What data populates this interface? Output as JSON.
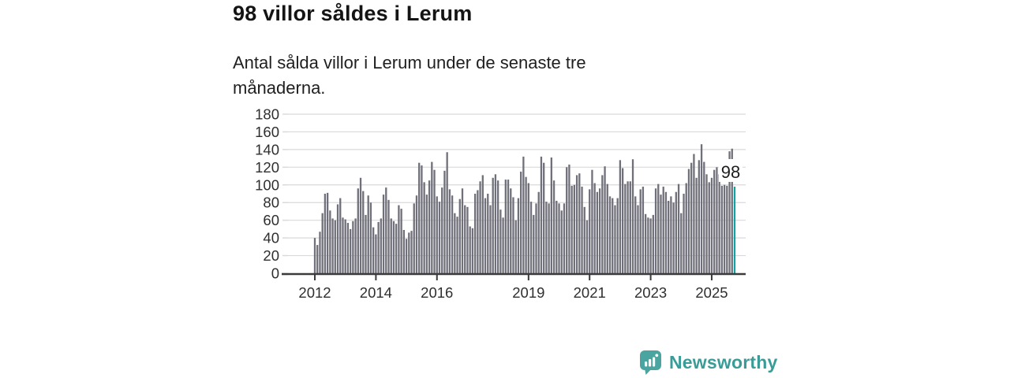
{
  "header": {
    "title": "98 villor såldes i Lerum",
    "subtitle_lines": [
      "Antal sålda villor i Lerum under de senaste tre",
      "månaderna."
    ]
  },
  "chart_data": {
    "type": "bar",
    "title": "98 villor såldes i Lerum",
    "subtitle": "Antal sålda villor i Lerum under de senaste tre månaderna.",
    "xlabel": "",
    "ylabel": "",
    "frequency": "monthly",
    "x_start": "2012-01",
    "x_end": "2025-10",
    "ylim": [
      0,
      180
    ],
    "y_ticks": [
      0,
      20,
      40,
      60,
      80,
      100,
      120,
      140,
      160,
      180
    ],
    "x_tick_years": [
      2012,
      2014,
      2016,
      2019,
      2021,
      2023,
      2025
    ],
    "x_tick_labels": [
      "2012",
      "2014",
      "2016",
      "2019",
      "2021",
      "2023",
      "2025"
    ],
    "grid": true,
    "bar_color": "#70707a",
    "values": [
      40,
      32,
      47,
      68,
      90,
      91,
      71,
      62,
      60,
      78,
      85,
      63,
      61,
      57,
      50,
      59,
      62,
      96,
      108,
      93,
      66,
      88,
      80,
      52,
      44,
      58,
      62,
      89,
      97,
      83,
      62,
      59,
      56,
      77,
      73,
      49,
      39,
      46,
      48,
      79,
      88,
      125,
      122,
      103,
      89,
      105,
      126,
      117,
      87,
      81,
      97,
      116,
      137,
      95,
      88,
      68,
      64,
      84,
      96,
      77,
      75,
      53,
      51,
      90,
      94,
      104,
      111,
      85,
      90,
      77,
      108,
      112,
      105,
      72,
      63,
      106,
      106,
      96,
      86,
      60,
      85,
      115,
      132,
      109,
      102,
      81,
      66,
      79,
      92,
      132,
      125,
      81,
      79,
      131,
      105,
      82,
      79,
      71,
      79,
      120,
      123,
      99,
      100,
      111,
      113,
      98,
      75,
      60,
      95,
      117,
      102,
      92,
      96,
      111,
      121,
      101,
      87,
      85,
      77,
      85,
      128,
      119,
      101,
      104,
      104,
      129,
      87,
      77,
      95,
      98,
      67,
      63,
      62,
      66,
      96,
      101,
      89,
      98,
      92,
      82,
      87,
      80,
      92,
      101,
      68,
      90,
      102,
      118,
      125,
      135,
      108,
      128,
      146,
      126,
      112,
      103,
      108,
      117,
      120,
      112,
      99,
      100,
      99,
      138,
      141,
      98
    ],
    "highlight": {
      "index": 165,
      "value": 98,
      "label": "98",
      "color": "#12a2a2"
    },
    "colors": {
      "grid": "#dadada",
      "axis": "#3b3b3b",
      "tick_text": "#2f2f2f",
      "annotation_text": "#1d1d1d"
    }
  },
  "branding": {
    "name": "Newsworthy",
    "icon": "newsworthy-speech-bubble-chart-icon",
    "text_color": "#3a9c97",
    "icon_color": "#4aa5a0"
  }
}
